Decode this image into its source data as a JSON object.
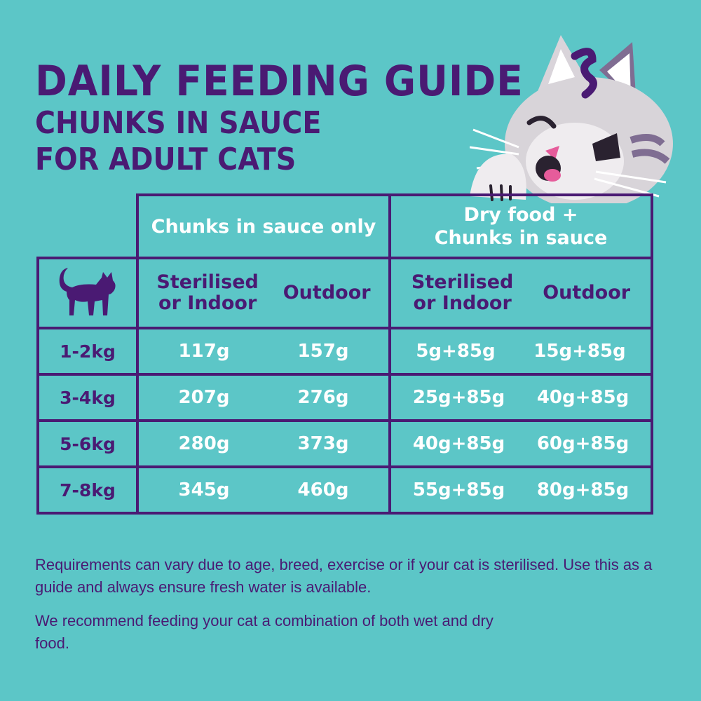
{
  "header": {
    "title": "DAILY FEEDING GUIDE",
    "subtitle_line1": "CHUNKS IN SAUCE",
    "subtitle_line2": "FOR ADULT CATS"
  },
  "table": {
    "groups": [
      {
        "label_line1": "Chunks in sauce only",
        "label_line2": ""
      },
      {
        "label_line1": "Dry food +",
        "label_line2": "Chunks in sauce"
      }
    ],
    "subheaders": [
      {
        "line1": "Sterilised",
        "line2": "or Indoor"
      },
      {
        "line1": "Outdoor",
        "line2": ""
      },
      {
        "line1": "Sterilised",
        "line2": "or Indoor"
      },
      {
        "line1": "Outdoor",
        "line2": ""
      }
    ],
    "rows": [
      {
        "weight": "1-2kg",
        "values": [
          "117g",
          "157g",
          "5g+85g",
          "15g+85g"
        ]
      },
      {
        "weight": "3-4kg",
        "values": [
          "207g",
          "276g",
          "25g+85g",
          "40g+85g"
        ]
      },
      {
        "weight": "5-6kg",
        "values": [
          "280g",
          "373g",
          "40g+85g",
          "60g+85g"
        ]
      },
      {
        "weight": "7-8kg",
        "values": [
          "345g",
          "460g",
          "55g+85g",
          "80g+85g"
        ]
      }
    ]
  },
  "notes": {
    "paragraph1": "Requirements can vary due to age, breed, exercise or if your cat is sterilised. Use this as a guide and always ensure fresh water is available.",
    "paragraph2": "We recommend feeding your cat a combination of both wet and dry food."
  },
  "colors": {
    "background": "#5cc6c7",
    "primary_purple": "#4a1a73",
    "value_text": "#ffffff"
  },
  "icons": {
    "cat_silhouette": "cat-silhouette-icon",
    "mascot": "cat-mascot-illustration"
  }
}
